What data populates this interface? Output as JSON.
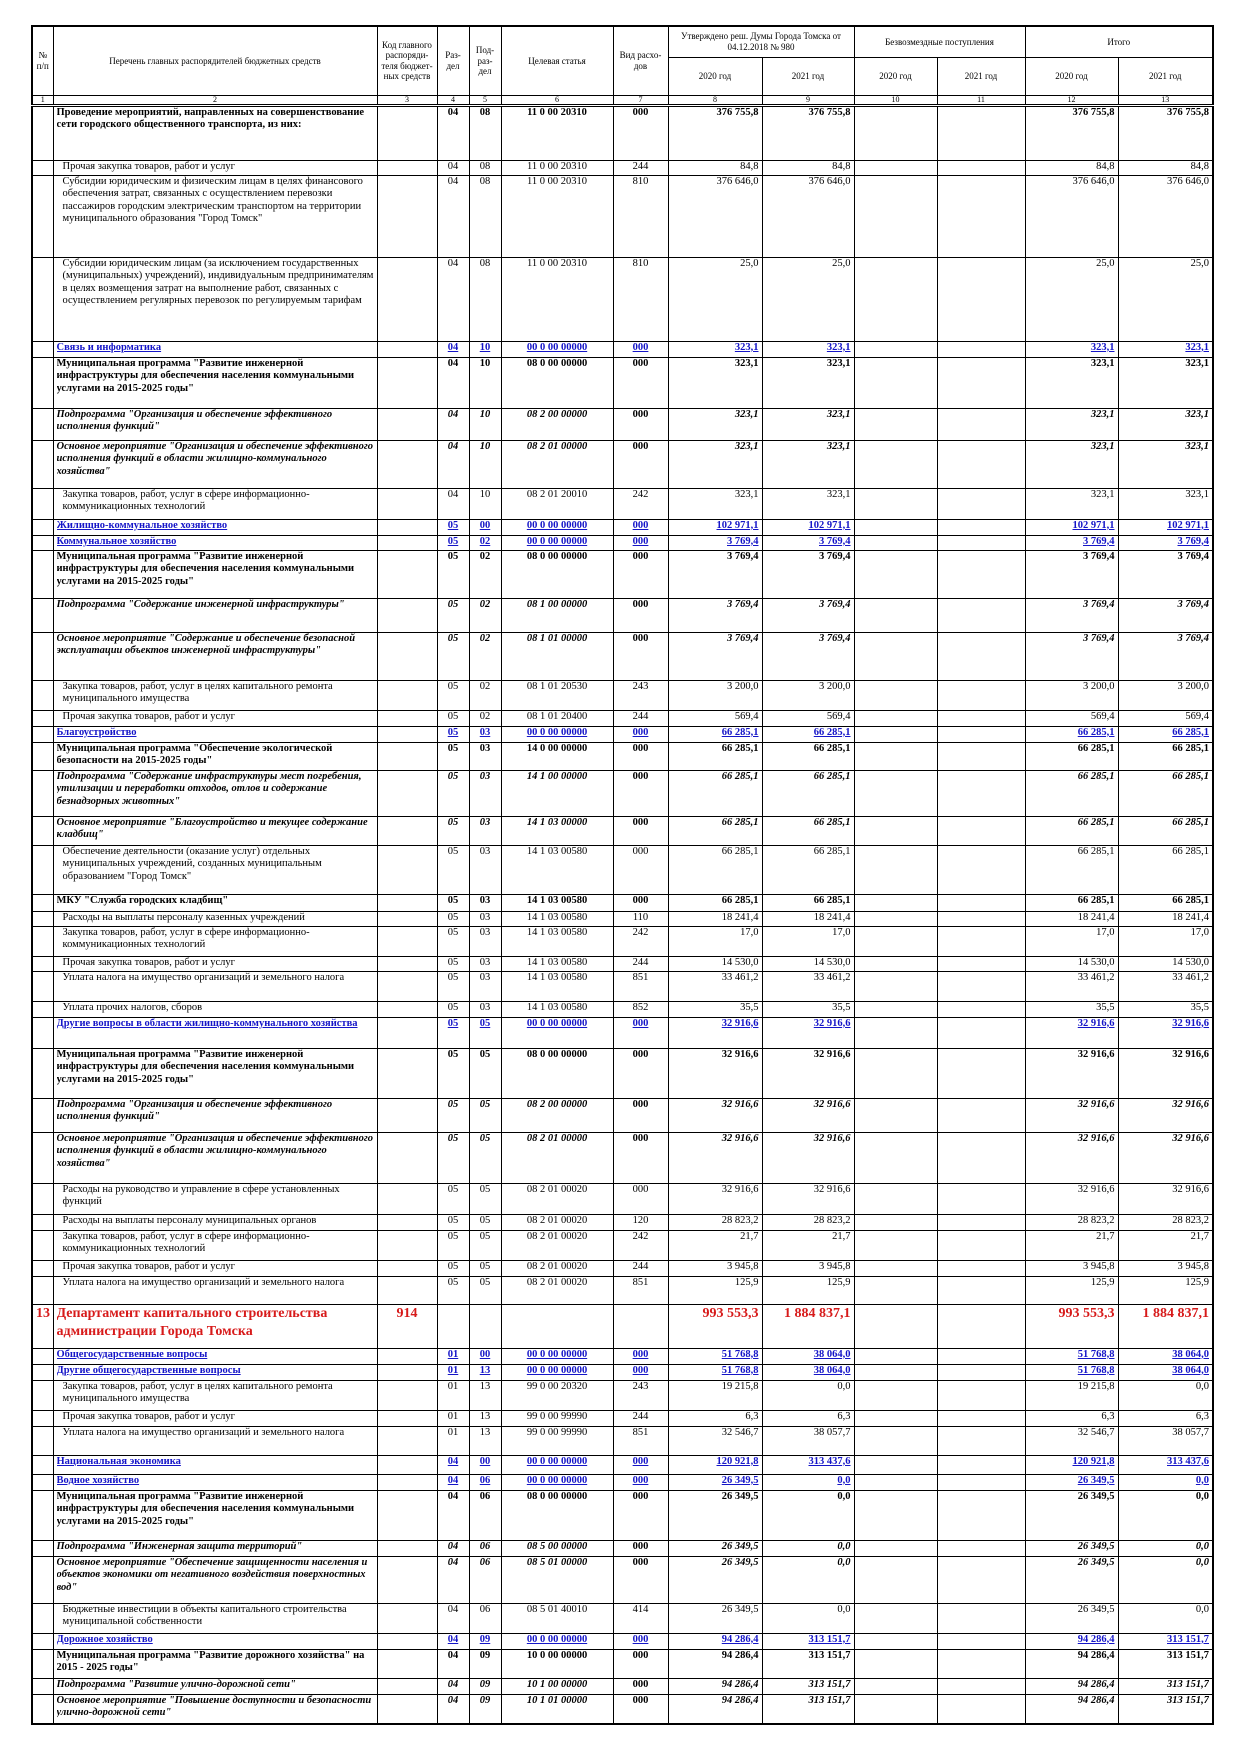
{
  "header": {
    "columns": [
      "№ п/п",
      "Перечень главных распорядителей бюджетных средств",
      "Код главного распоряди-теля бюджет-ных средств",
      "Раз-дел",
      "Под-раз-дел",
      "Целевая статья",
      "Вид расхо-дов"
    ],
    "groups": [
      "Утверждено реш. Думы Города Томска от 04.12.2018 № 980",
      "Безвозмездные поступления",
      "Итого"
    ],
    "years": [
      "2020 год",
      "2021 год",
      "2020 год",
      "2021 год",
      "2020 год",
      "2021 год"
    ],
    "column_numbers": [
      "1",
      "2",
      "3",
      "4",
      "5",
      "6",
      "7",
      "8",
      "9",
      "10",
      "11",
      "12",
      "13"
    ]
  },
  "rows": [
    [
      "",
      "Проведение мероприятий, направленных на совершенствование сети городского общественного транспорта, из них:",
      "",
      "04",
      "08",
      "11 0 00 20310",
      "000",
      "376 755,8",
      "376 755,8",
      "",
      "",
      "376 755,8",
      "376 755,8"
    ],
    [
      "",
      "Прочая закупка товаров, работ и услуг",
      "",
      "04",
      "08",
      "11 0 00 20310",
      "244",
      "84,8",
      "84,8",
      "",
      "",
      "84,8",
      "84,8"
    ],
    [
      "",
      "Субсидии юридическим и физическим лицам в целях финансового обеспечения затрат, связанных с осуществлением перевозки пассажиров городским электрическим транспортом на территории муниципального образования \"Город Томск\"",
      "",
      "04",
      "08",
      "11 0 00 20310",
      "810",
      "376 646,0",
      "376 646,0",
      "",
      "",
      "376 646,0",
      "376 646,0"
    ],
    [
      "",
      "Субсидии юридическим лицам (за исключением государственных (муниципальных) учреждений), индивидуальным предпринимателям в целях возмещения затрат на выполнение работ, связанных с осуществлением регулярных перевозок по регулируемым тарифам",
      "",
      "04",
      "08",
      "11 0 00 20310",
      "810",
      "25,0",
      "25,0",
      "",
      "",
      "25,0",
      "25,0"
    ],
    [
      "",
      "Связь и информатика",
      "",
      "04",
      "10",
      "00 0 00 00000",
      "000",
      "323,1",
      "323,1",
      "",
      "",
      "323,1",
      "323,1"
    ],
    [
      "",
      "Муниципальная программа \"Развитие инженерной инфраструктуры для обеспечения населения коммунальными услугами на 2015-2025 годы\"",
      "",
      "04",
      "10",
      "08 0 00 00000",
      "000",
      "323,1",
      "323,1",
      "",
      "",
      "323,1",
      "323,1"
    ],
    [
      "",
      "Подпрограмма \"Организация и обеспечение эффективного исполнения функций\"",
      "",
      "04",
      "10",
      "08 2 00 00000",
      "000",
      "323,1",
      "323,1",
      "",
      "",
      "323,1",
      "323,1"
    ],
    [
      "",
      "Основное мероприятие \"Организация и обеспечение эффективного исполнения функций в области жилищно-коммунального хозяйства\"",
      "",
      "04",
      "10",
      "08 2 01 00000",
      "000",
      "323,1",
      "323,1",
      "",
      "",
      "323,1",
      "323,1"
    ],
    [
      "",
      "Закупка товаров, работ, услуг в сфере информационно-коммуникационных технологий",
      "",
      "04",
      "10",
      "08 2 01 20010",
      "242",
      "323,1",
      "323,1",
      "",
      "",
      "323,1",
      "323,1"
    ],
    [
      "",
      "Жилищно-коммунальное хозяйство",
      "",
      "05",
      "00",
      "00 0 00 00000",
      "000",
      "102 971,1",
      "102 971,1",
      "",
      "",
      "102 971,1",
      "102 971,1"
    ],
    [
      "",
      "Коммунальное хозяйство",
      "",
      "05",
      "02",
      "00 0 00 00000",
      "000",
      "3 769,4",
      "3 769,4",
      "",
      "",
      "3 769,4",
      "3 769,4"
    ],
    [
      "",
      "Муниципальная программа \"Развитие инженерной инфраструктуры для обеспечения населения коммунальными услугами на 2015-2025 годы\"",
      "",
      "05",
      "02",
      "08 0 00 00000",
      "000",
      "3 769,4",
      "3 769,4",
      "",
      "",
      "3 769,4",
      "3 769,4"
    ],
    [
      "",
      "Подпрограмма \"Содержание инженерной инфраструктуры\"",
      "",
      "05",
      "02",
      "08 1 00 00000",
      "000",
      "3 769,4",
      "3 769,4",
      "",
      "",
      "3 769,4",
      "3 769,4"
    ],
    [
      "",
      "Основное мероприятие \"Содержание и обеспечение безопасной эксплуатации объектов инженерной инфраструктуры\"",
      "",
      "05",
      "02",
      "08 1 01 00000",
      "000",
      "3 769,4",
      "3 769,4",
      "",
      "",
      "3 769,4",
      "3 769,4"
    ],
    [
      "",
      "Закупка товаров, работ, услуг в целях капитального ремонта муниципального имущества",
      "",
      "05",
      "02",
      "08 1 01 20530",
      "243",
      "3 200,0",
      "3 200,0",
      "",
      "",
      "3 200,0",
      "3 200,0"
    ],
    [
      "",
      "Прочая закупка товаров, работ и услуг",
      "",
      "05",
      "02",
      "08 1 01 20400",
      "244",
      "569,4",
      "569,4",
      "",
      "",
      "569,4",
      "569,4"
    ],
    [
      "",
      "Благоустройство",
      "",
      "05",
      "03",
      "00 0 00 00000",
      "000",
      "66 285,1",
      "66 285,1",
      "",
      "",
      "66 285,1",
      "66 285,1"
    ],
    [
      "",
      "Муниципальная программа \"Обеспечение экологической безопасности на 2015-2025 годы\"",
      "",
      "05",
      "03",
      "14 0 00 00000",
      "000",
      "66 285,1",
      "66 285,1",
      "",
      "",
      "66 285,1",
      "66 285,1"
    ],
    [
      "",
      "Подпрограмма \"Содержание инфраструктуры мест погребения, утилизации и переработки отходов, отлов и содержание безнадзорных животных\"",
      "",
      "05",
      "03",
      "14 1 00 00000",
      "000",
      "66 285,1",
      "66 285,1",
      "",
      "",
      "66 285,1",
      "66 285,1"
    ],
    [
      "",
      "Основное мероприятие \"Благоустройство и текущее содержание кладбищ\"",
      "",
      "05",
      "03",
      "14 1 03 00000",
      "000",
      "66 285,1",
      "66 285,1",
      "",
      "",
      "66 285,1",
      "66 285,1"
    ],
    [
      "",
      "Обеспечение деятельности (оказание услуг) отдельных муниципальных учреждений, созданных муниципальным образованием \"Город Томск\"",
      "",
      "05",
      "03",
      "14 1 03 00580",
      "000",
      "66 285,1",
      "66 285,1",
      "",
      "",
      "66 285,1",
      "66 285,1"
    ],
    [
      "",
      "МКУ \"Служба городских кладбищ\"",
      "",
      "05",
      "03",
      "14 1 03 00580",
      "000",
      "66 285,1",
      "66 285,1",
      "",
      "",
      "66 285,1",
      "66 285,1"
    ],
    [
      "",
      "Расходы на выплаты персоналу казенных учреждений",
      "",
      "05",
      "03",
      "14 1 03 00580",
      "110",
      "18 241,4",
      "18 241,4",
      "",
      "",
      "18 241,4",
      "18 241,4"
    ],
    [
      "",
      "Закупка товаров, работ, услуг в сфере информационно-коммуникационных технологий",
      "",
      "05",
      "03",
      "14 1 03 00580",
      "242",
      "17,0",
      "17,0",
      "",
      "",
      "17,0",
      "17,0"
    ],
    [
      "",
      "Прочая закупка товаров, работ и услуг",
      "",
      "05",
      "03",
      "14 1 03 00580",
      "244",
      "14 530,0",
      "14 530,0",
      "",
      "",
      "14 530,0",
      "14 530,0"
    ],
    [
      "",
      "Уплата налога на имущество организаций и земельного налога",
      "",
      "05",
      "03",
      "14 1 03 00580",
      "851",
      "33 461,2",
      "33 461,2",
      "",
      "",
      "33 461,2",
      "33 461,2"
    ],
    [
      "",
      "Уплата прочих налогов, сборов",
      "",
      "05",
      "03",
      "14 1 03 00580",
      "852",
      "35,5",
      "35,5",
      "",
      "",
      "35,5",
      "35,5"
    ],
    [
      "",
      "Другие вопросы в области жилищно-коммунального хозяйства",
      "",
      "05",
      "05",
      "00 0 00 00000",
      "000",
      "32 916,6",
      "32 916,6",
      "",
      "",
      "32 916,6",
      "32 916,6"
    ],
    [
      "",
      "Муниципальная программа \"Развитие инженерной инфраструктуры для обеспечения населения коммунальными услугами на 2015-2025 годы\"",
      "",
      "05",
      "05",
      "08 0 00 00000",
      "000",
      "32 916,6",
      "32 916,6",
      "",
      "",
      "32 916,6",
      "32 916,6"
    ],
    [
      "",
      "Подпрограмма \"Организация и обеспечение эффективного исполнения функций\"",
      "",
      "05",
      "05",
      "08 2 00 00000",
      "000",
      "32 916,6",
      "32 916,6",
      "",
      "",
      "32 916,6",
      "32 916,6"
    ],
    [
      "",
      "Основное мероприятие \"Организация и обеспечение эффективного исполнения функций в области жилищно-коммунального хозяйства\"",
      "",
      "05",
      "05",
      "08 2 01 00000",
      "000",
      "32 916,6",
      "32 916,6",
      "",
      "",
      "32 916,6",
      "32 916,6"
    ],
    [
      "",
      "Расходы на руководство и управление в сфере установленных функций",
      "",
      "05",
      "05",
      "08 2 01 00020",
      "000",
      "32 916,6",
      "32 916,6",
      "",
      "",
      "32 916,6",
      "32 916,6"
    ],
    [
      "",
      "Расходы на выплаты персоналу муниципальных органов",
      "",
      "05",
      "05",
      "08 2 01 00020",
      "120",
      "28 823,2",
      "28 823,2",
      "",
      "",
      "28 823,2",
      "28 823,2"
    ],
    [
      "",
      "Закупка товаров, работ, услуг в сфере информационно-коммуникационных технологий",
      "",
      "05",
      "05",
      "08 2 01 00020",
      "242",
      "21,7",
      "21,7",
      "",
      "",
      "21,7",
      "21,7"
    ],
    [
      "",
      "Прочая закупка товаров, работ и услуг",
      "",
      "05",
      "05",
      "08 2 01 00020",
      "244",
      "3 945,8",
      "3 945,8",
      "",
      "",
      "3 945,8",
      "3 945,8"
    ],
    [
      "",
      "Уплата налога на имущество организаций и земельного налога",
      "",
      "05",
      "05",
      "08 2 01 00020",
      "851",
      "125,9",
      "125,9",
      "",
      "",
      "125,9",
      "125,9"
    ],
    [
      "13",
      "Департамент капитального строительства администрации Города Томска",
      "914",
      "",
      "",
      "",
      "",
      "993 553,3",
      "1 884 837,1",
      "",
      "",
      "993 553,3",
      "1 884 837,1"
    ],
    [
      "",
      "Общегосударственные вопросы",
      "",
      "01",
      "00",
      "00 0 00 00000",
      "000",
      "51 768,8",
      "38 064,0",
      "",
      "",
      "51 768,8",
      "38 064,0"
    ],
    [
      "",
      "Другие общегосударственные вопросы",
      "",
      "01",
      "13",
      "00 0 00 00000",
      "000",
      "51 768,8",
      "38 064,0",
      "",
      "",
      "51 768,8",
      "38 064,0"
    ],
    [
      "",
      "Закупка товаров, работ, услуг в целях капитального ремонта муниципального имущества",
      "",
      "01",
      "13",
      "99 0 00 20320",
      "243",
      "19 215,8",
      "0,0",
      "",
      "",
      "19 215,8",
      "0,0"
    ],
    [
      "",
      "Прочая закупка товаров, работ и услуг",
      "",
      "01",
      "13",
      "99 0 00 99990",
      "244",
      "6,3",
      "6,3",
      "",
      "",
      "6,3",
      "6,3"
    ],
    [
      "",
      "Уплата налога на имущество организаций и земельного налога",
      "",
      "01",
      "13",
      "99 0 00 99990",
      "851",
      "32 546,7",
      "38 057,7",
      "",
      "",
      "32 546,7",
      "38 057,7"
    ],
    [
      "",
      "Национальная экономика",
      "",
      "04",
      "00",
      "00 0 00 00000",
      "000",
      "120 921,8",
      "313 437,6",
      "",
      "",
      "120 921,8",
      "313 437,6"
    ],
    [
      "",
      "Водное хозяйство",
      "",
      "04",
      "06",
      "00 0 00 00000",
      "000",
      "26 349,5",
      "0,0",
      "",
      "",
      "26 349,5",
      "0,0"
    ],
    [
      "",
      "Муниципальная программа \"Развитие инженерной инфраструктуры для обеспечения населения коммунальными услугами на 2015-2025 годы\"",
      "",
      "04",
      "06",
      "08 0 00 00000",
      "000",
      "26 349,5",
      "0,0",
      "",
      "",
      "26 349,5",
      "0,0"
    ],
    [
      "",
      "Подпрограмма \"Инженерная защита территорий\"",
      "",
      "04",
      "06",
      "08 5 00 00000",
      "000",
      "26 349,5",
      "0,0",
      "",
      "",
      "26 349,5",
      "0,0"
    ],
    [
      "",
      "Основное мероприятие \"Обеспечение защищенности населения и объектов экономики от негативного воздействия поверхностных вод\"",
      "",
      "04",
      "06",
      "08 5 01 00000",
      "000",
      "26 349,5",
      "0,0",
      "",
      "",
      "26 349,5",
      "0,0"
    ],
    [
      "",
      "Бюджетные инвестиции в объекты капитального строительства муниципальной собственности",
      "",
      "04",
      "06",
      "08 5 01 40010",
      "414",
      "26 349,5",
      "0,0",
      "",
      "",
      "26 349,5",
      "0,0"
    ],
    [
      "",
      "Дорожное хозяйство",
      "",
      "04",
      "09",
      "00 0 00 00000",
      "000",
      "94 286,4",
      "313 151,7",
      "",
      "",
      "94 286,4",
      "313 151,7"
    ],
    [
      "",
      "Муниципальная программа \"Развитие дорожного хозяйства\" на 2015 - 2025 годы\"",
      "",
      "04",
      "09",
      "10 0 00 00000",
      "000",
      "94 286,4",
      "313 151,7",
      "",
      "",
      "94 286,4",
      "313 151,7"
    ],
    [
      "",
      "Подпрограмма \"Развитие улично-дорожной сети\"",
      "",
      "04",
      "09",
      "10 1 00 00000",
      "000",
      "94 286,4",
      "313 151,7",
      "",
      "",
      "94 286,4",
      "313 151,7"
    ],
    [
      "",
      "Основное мероприятие \"Повышение доступности и безопасности улично-дорожной сети\"",
      "",
      "04",
      "09",
      "10 1 01 00000",
      "000",
      "94 286,4",
      "313 151,7",
      "",
      "",
      "94 286,4",
      "313 151,7"
    ]
  ]
}
